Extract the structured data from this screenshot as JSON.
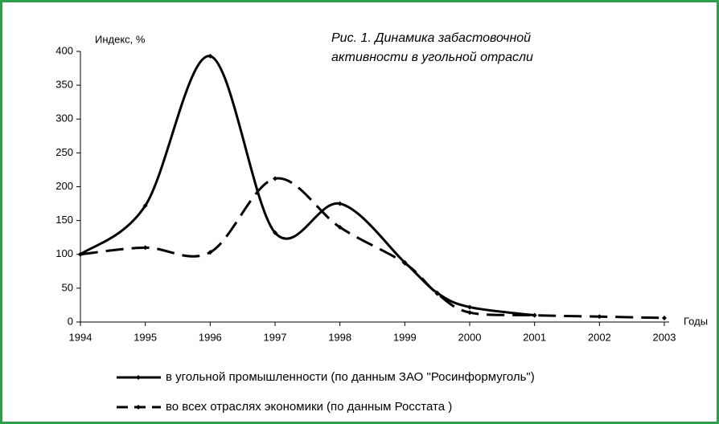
{
  "chart_data": {
    "type": "line",
    "title": [
      "Рис. 1. Динамика забастовочной",
      "активности в угольной отрасли"
    ],
    "y_label": "Индекс, %",
    "x_label": "Годы",
    "x": [
      1994,
      1995,
      1996,
      1997,
      1998,
      1999,
      1999.5,
      2000,
      2001,
      2002,
      2003
    ],
    "series": [
      {
        "name": "в угольной промышленности (по данным ЗАО \"Росинформуголь\")",
        "color": "#000000",
        "dash": false,
        "values": [
          100,
          172,
          393,
          132,
          175,
          88,
          43,
          22,
          10,
          null,
          null
        ]
      },
      {
        "name": "во всех отраслях экономики (по данным Росстата )",
        "color": "#000000",
        "dash": true,
        "values": [
          100,
          110,
          103,
          212,
          140,
          87,
          42,
          14,
          10,
          8,
          6
        ]
      }
    ],
    "xlim": [
      1994,
      2003
    ],
    "xticks": [
      1994,
      1995,
      1996,
      1997,
      1998,
      1999,
      2000,
      2001,
      2002,
      2003
    ],
    "ylim": [
      0,
      400
    ],
    "yticks": [
      0,
      50,
      100,
      150,
      200,
      250,
      300,
      350,
      400
    ],
    "grid": false
  }
}
